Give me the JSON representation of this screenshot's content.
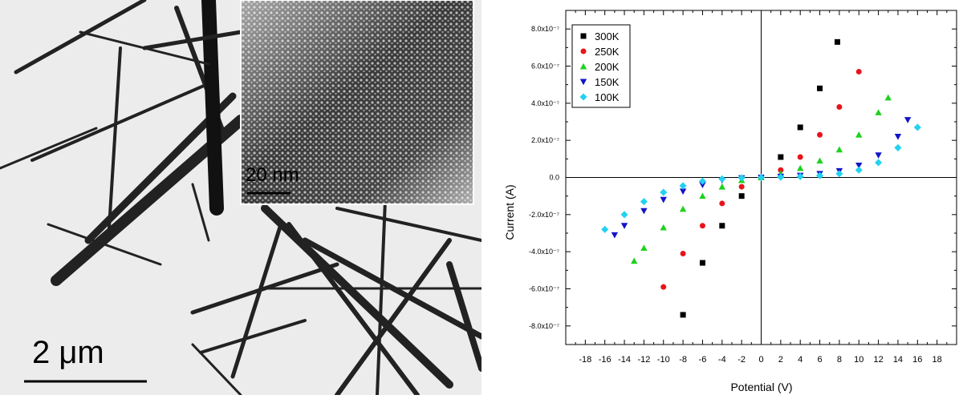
{
  "micrograph": {
    "main_scale_bar_label": "2 μm",
    "inset_scale_bar_label": "20 nm"
  },
  "chart_data": {
    "type": "scatter",
    "title": "",
    "xlabel": "Potential (V)",
    "ylabel": "Current (A)",
    "xlim": [
      -20,
      20
    ],
    "ylim": [
      -9e-07,
      9e-07
    ],
    "x_ticks": [
      -18,
      -16,
      -14,
      -12,
      -10,
      -8,
      -6,
      -4,
      -2,
      0,
      2,
      4,
      6,
      8,
      10,
      12,
      14,
      16,
      18
    ],
    "y_ticks": [
      {
        "value": 8e-07,
        "label": "8.0x10⁻⁷"
      },
      {
        "value": 6e-07,
        "label": "6.0x10⁻⁷"
      },
      {
        "value": 4e-07,
        "label": "4.0x10⁻⁷"
      },
      {
        "value": 2e-07,
        "label": "2.0x10⁻⁷"
      },
      {
        "value": 0,
        "label": "0.0"
      },
      {
        "value": -2e-07,
        "label": "-2.0x10⁻⁷"
      },
      {
        "value": -4e-07,
        "label": "-4.0x10⁻⁷"
      },
      {
        "value": -6e-07,
        "label": "-6.0x10⁻⁷"
      },
      {
        "value": -8e-07,
        "label": "-8.0x10⁻⁷"
      }
    ],
    "legend_position": "top-left",
    "series": [
      {
        "name": "300K",
        "color": "#000000",
        "marker": "square",
        "x": [
          -8,
          -6,
          -4,
          -2,
          0,
          2,
          4,
          6,
          7.8
        ],
        "y": [
          -7.4e-07,
          -4.6e-07,
          -2.6e-07,
          -1e-07,
          0,
          1.1e-07,
          2.7e-07,
          4.8e-07,
          7.3e-07
        ]
      },
      {
        "name": "250K",
        "color": "#e8141b",
        "marker": "circle",
        "x": [
          -10,
          -8,
          -6,
          -4,
          -2,
          0,
          2,
          4,
          6,
          8,
          10
        ],
        "y": [
          -5.9e-07,
          -4.1e-07,
          -2.6e-07,
          -1.4e-07,
          -5e-08,
          0,
          4e-08,
          1.1e-07,
          2.3e-07,
          3.8e-07,
          5.7e-07
        ]
      },
      {
        "name": "200K",
        "color": "#1ed21e",
        "marker": "triangle-up",
        "x": [
          -13,
          -12,
          -10,
          -8,
          -6,
          -4,
          -2,
          0,
          2,
          4,
          6,
          8,
          10,
          12,
          13
        ],
        "y": [
          -4.5e-07,
          -3.8e-07,
          -2.7e-07,
          -1.7e-07,
          -1e-07,
          -5e-08,
          -1.5e-08,
          0,
          2e-08,
          5e-08,
          9e-08,
          1.5e-07,
          2.3e-07,
          3.5e-07,
          4.3e-07
        ]
      },
      {
        "name": "150K",
        "color": "#1414c8",
        "marker": "triangle-down",
        "x": [
          -15,
          -14,
          -12,
          -10,
          -8,
          -6,
          -4,
          -2,
          0,
          2,
          4,
          6,
          8,
          10,
          12,
          14,
          15
        ],
        "y": [
          -3.1e-07,
          -2.6e-07,
          -1.8e-07,
          -1.2e-07,
          -7.5e-08,
          -4e-08,
          -1.5e-08,
          -3e-09,
          0,
          5e-09,
          1e-08,
          2e-08,
          3.5e-08,
          6.5e-08,
          1.2e-07,
          2.2e-07,
          3.1e-07
        ]
      },
      {
        "name": "100K",
        "color": "#23d2f0",
        "marker": "diamond",
        "x": [
          -16,
          -14,
          -12,
          -10,
          -8,
          -6,
          -4,
          -2,
          0,
          2,
          4,
          6,
          8,
          10,
          12,
          14,
          16
        ],
        "y": [
          -2.8e-07,
          -2e-07,
          -1.3e-07,
          -8e-08,
          -4.5e-08,
          -2e-08,
          -8e-09,
          -2e-09,
          0,
          2e-09,
          5e-09,
          1e-08,
          2e-08,
          4e-08,
          8e-08,
          1.6e-07,
          2.7e-07
        ]
      }
    ]
  }
}
